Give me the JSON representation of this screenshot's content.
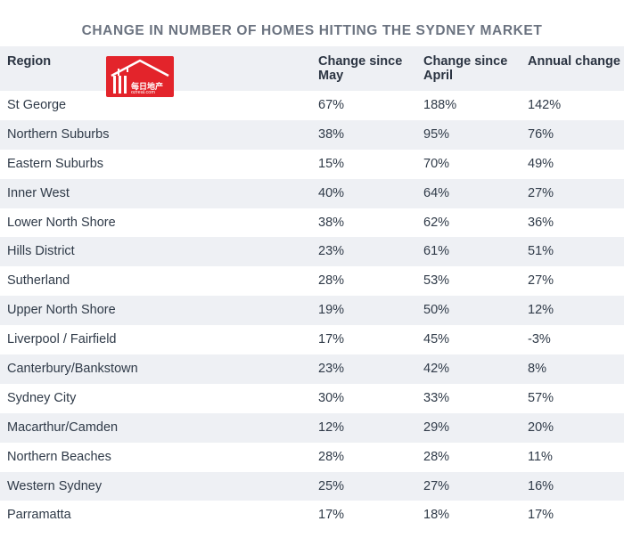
{
  "chart_data": {
    "type": "table",
    "title": "CHANGE IN NUMBER OF HOMES HITTING THE SYDNEY MARKET",
    "columns": [
      "Region",
      "Change since May",
      "Change since April",
      "Annual change"
    ],
    "rows": [
      {
        "region": "St George",
        "may": "67%",
        "april": "188%",
        "annual": "142%"
      },
      {
        "region": "Northern Suburbs",
        "may": "38%",
        "april": "95%",
        "annual": "76%"
      },
      {
        "region": "Eastern Suburbs",
        "may": "15%",
        "april": "70%",
        "annual": "49%"
      },
      {
        "region": "Inner West",
        "may": "40%",
        "april": "64%",
        "annual": "27%"
      },
      {
        "region": "Lower North Shore",
        "may": "38%",
        "april": "62%",
        "annual": "36%"
      },
      {
        "region": "Hills District",
        "may": "23%",
        "april": "61%",
        "annual": "51%"
      },
      {
        "region": "Sutherland",
        "may": "28%",
        "april": "53%",
        "annual": "27%"
      },
      {
        "region": "Upper North Shore",
        "may": "19%",
        "april": "50%",
        "annual": "12%"
      },
      {
        "region": "Liverpool / Fairfield",
        "may": "17%",
        "april": "45%",
        "annual": "-3%"
      },
      {
        "region": "Canterbury/Bankstown",
        "may": "23%",
        "april": "42%",
        "annual": "8%"
      },
      {
        "region": "Sydney City",
        "may": "30%",
        "april": "33%",
        "annual": "57%"
      },
      {
        "region": "Macarthur/Camden",
        "may": "12%",
        "april": "29%",
        "annual": "20%"
      },
      {
        "region": "Northern Beaches",
        "may": "28%",
        "april": "28%",
        "annual": "11%"
      },
      {
        "region": "Western Sydney",
        "may": "25%",
        "april": "27%",
        "annual": "16%"
      },
      {
        "region": "Parramatta",
        "may": "17%",
        "april": "18%",
        "annual": "17%"
      }
    ]
  },
  "watermark": {
    "text": "每日地产",
    "subtext": "ozreal.com"
  },
  "colors": {
    "stripe": "#eef0f4",
    "title": "#6b7380",
    "text": "#2f3a48",
    "logo": "#e3242b"
  }
}
